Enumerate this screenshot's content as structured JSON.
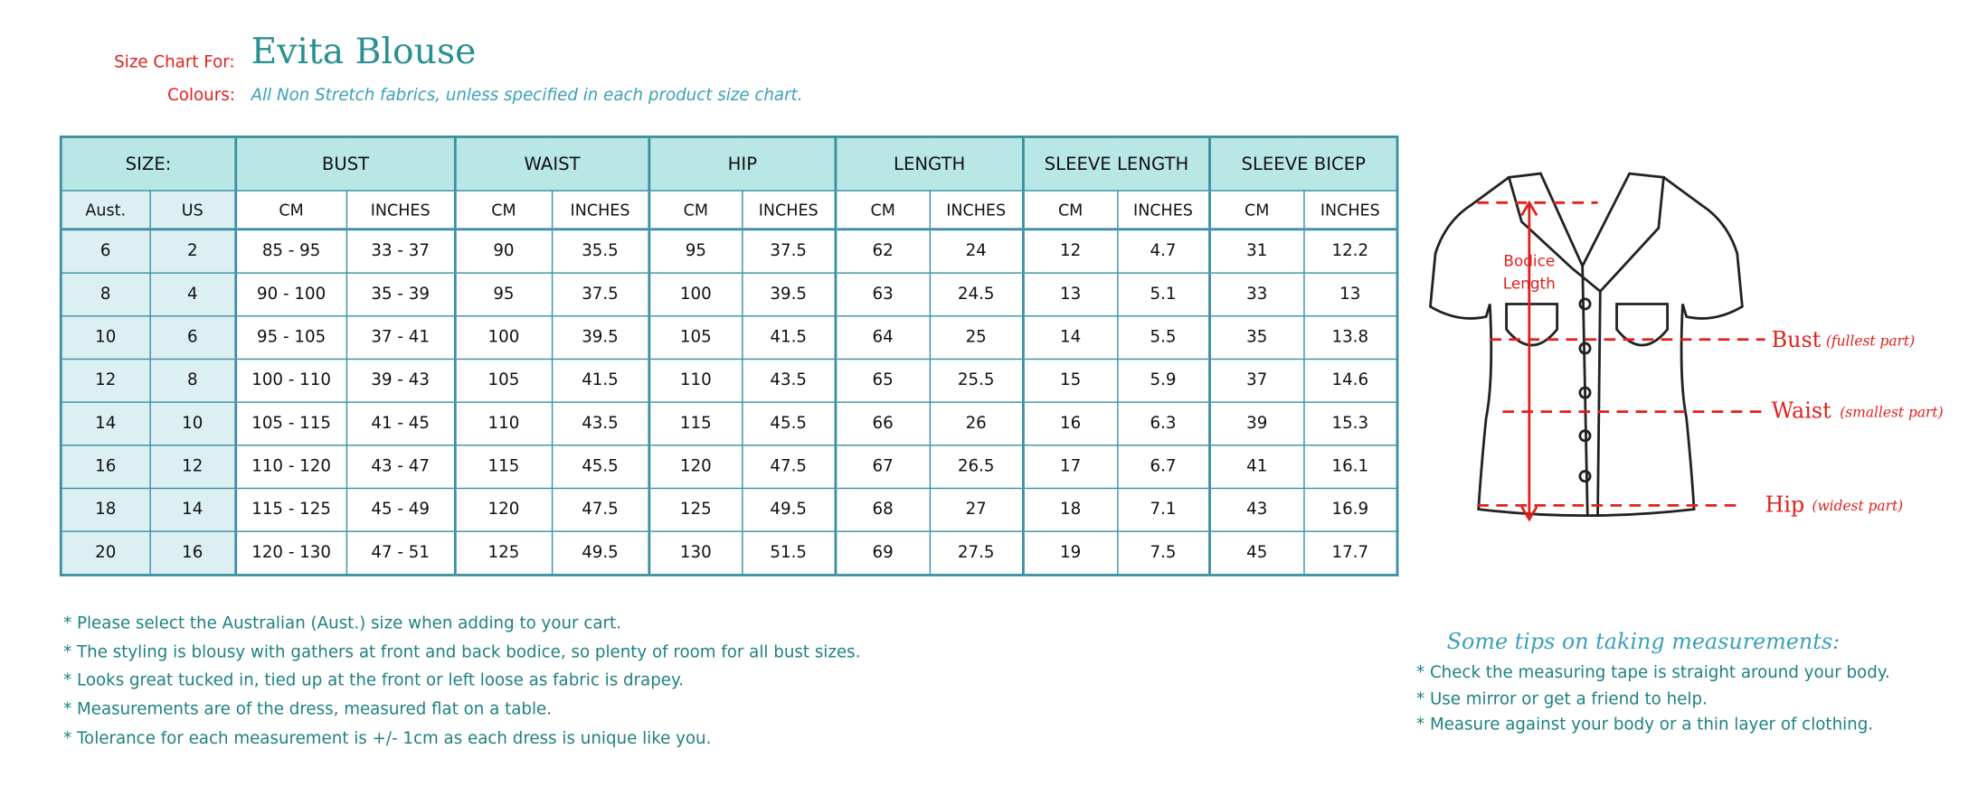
{
  "header": {
    "label": "Size Chart For:",
    "title": "Evita Blouse",
    "colours_label": "Colours:",
    "colours": "All Non Stretch fabrics, unless specified in each product size chart."
  },
  "table": {
    "groups": [
      "SIZE:",
      "BUST",
      "WAIST",
      "HIP",
      "LENGTH",
      "SLEEVE LENGTH",
      "SLEEVE BICEP"
    ],
    "subheaders": [
      "Aust.",
      "US",
      "CM",
      "INCHES",
      "CM",
      "INCHES",
      "CM",
      "INCHES",
      "CM",
      "INCHES",
      "CM",
      "INCHES",
      "CM",
      "INCHES"
    ],
    "rows": [
      [
        "6",
        "2",
        "85 - 95",
        "33 - 37",
        "90",
        "35.5",
        "95",
        "37.5",
        "62",
        "24",
        "12",
        "4.7",
        "31",
        "12.2"
      ],
      [
        "8",
        "4",
        "90 - 100",
        "35 - 39",
        "95",
        "37.5",
        "100",
        "39.5",
        "63",
        "24.5",
        "13",
        "5.1",
        "33",
        "13"
      ],
      [
        "10",
        "6",
        "95 - 105",
        "37 - 41",
        "100",
        "39.5",
        "105",
        "41.5",
        "64",
        "25",
        "14",
        "5.5",
        "35",
        "13.8"
      ],
      [
        "12",
        "8",
        "100 - 110",
        "39 - 43",
        "105",
        "41.5",
        "110",
        "43.5",
        "65",
        "25.5",
        "15",
        "5.9",
        "37",
        "14.6"
      ],
      [
        "14",
        "10",
        "105 - 115",
        "41 - 45",
        "110",
        "43.5",
        "115",
        "45.5",
        "66",
        "26",
        "16",
        "6.3",
        "39",
        "15.3"
      ],
      [
        "16",
        "12",
        "110 - 120",
        "43 - 47",
        "115",
        "45.5",
        "120",
        "47.5",
        "67",
        "26.5",
        "17",
        "6.7",
        "41",
        "16.1"
      ],
      [
        "18",
        "14",
        "115 - 125",
        "45 - 49",
        "120",
        "47.5",
        "125",
        "49.5",
        "68",
        "27",
        "18",
        "7.1",
        "43",
        "16.9"
      ],
      [
        "20",
        "16",
        "120 - 130",
        "47 - 51",
        "125",
        "49.5",
        "130",
        "51.5",
        "69",
        "27.5",
        "19",
        "7.5",
        "45",
        "17.7"
      ]
    ]
  },
  "notes": [
    "* Please select the Australian (Aust.) size when adding to your cart.",
    "* The styling is blousy with gathers at front and back bodice, so plenty of room for all bust sizes.",
    "* Looks great tucked in, tied up at the front or left loose as fabric is drapey.",
    "* Measurements are of the dress, measured flat on a table.",
    "* Tolerance for each measurement is +/- 1cm as each dress is unique like you."
  ],
  "tips": {
    "title": "Some tips on taking measurements:",
    "items": [
      "* Check the measuring tape is straight around your body.",
      "* Use mirror or get a friend to help.",
      "* Measure against your body or a thin layer of clothing."
    ]
  },
  "diagram": {
    "bodice_length": [
      "Bodice",
      "Length"
    ],
    "bust": "Bust",
    "bust_note": "(fullest part)",
    "waist": "Waist",
    "waist_note": "(smallest part)",
    "hip": "Hip",
    "hip_note": "(widest part)"
  }
}
